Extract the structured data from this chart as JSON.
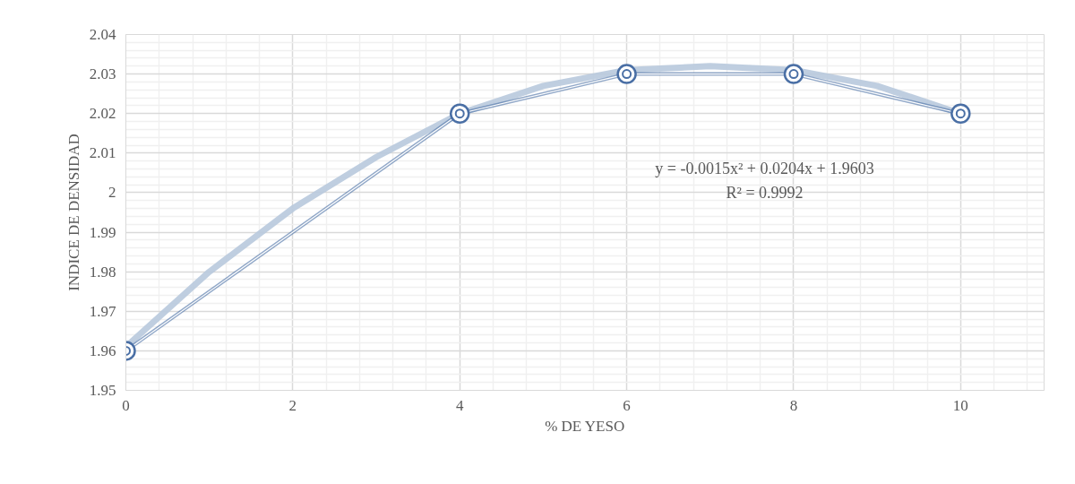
{
  "chart_data": {
    "type": "line",
    "xlabel": "% DE YESO",
    "ylabel": "INDICE DE DENSIDAD",
    "annotations": [
      "y = -0.0015x² + 0.0204x + 1.9603",
      "R² = 0.9992"
    ],
    "series": [
      {
        "color": "#b8c9dd",
        "x": [
          0,
          1,
          2,
          3,
          4,
          5,
          6,
          7,
          8,
          9,
          10
        ],
        "values": [
          1.961,
          1.98,
          1.996,
          2.009,
          2.02,
          2.027,
          2.031,
          2.032,
          2.031,
          2.027,
          2.02
        ],
        "marker": "none"
      },
      {
        "color": "#4a6fa5",
        "x": [
          0,
          4,
          6,
          8,
          10
        ],
        "values": [
          1.96,
          2.02,
          2.03,
          2.03,
          2.02
        ],
        "marker": "circle"
      }
    ],
    "xlim": [
      0,
      11
    ],
    "ylim": [
      1.95,
      2.04
    ],
    "xticks": [
      0,
      2,
      4,
      6,
      8,
      10
    ],
    "yticks": [
      1.95,
      1.96,
      1.97,
      1.98,
      1.99,
      2,
      2.01,
      2.02,
      2.03,
      2.04
    ],
    "grid": true
  }
}
